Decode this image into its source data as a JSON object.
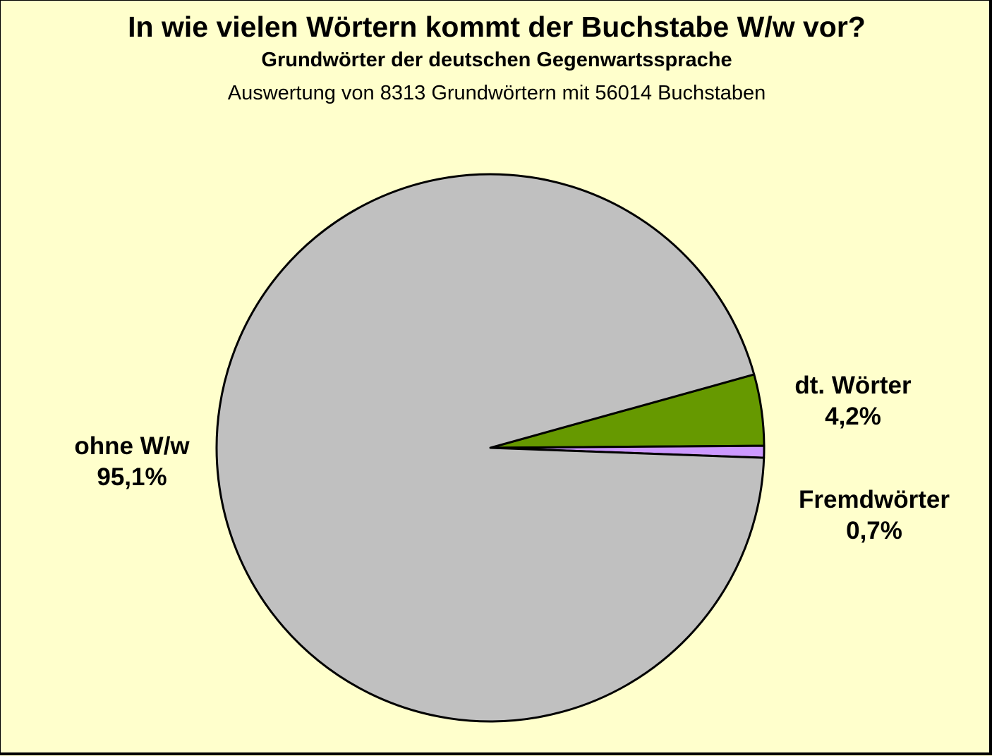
{
  "chart_data": {
    "type": "pie",
    "title": "In wie vielen Wörtern kommt der Buchstabe W/w vor?",
    "subtitle": "Grundwörter der deutschen Gegenwartssprache",
    "caption": "Auswertung von 8313 Grundwörtern mit 56014 Buchstaben",
    "slices": [
      {
        "label": "dt. Wörter",
        "value": 4.2,
        "value_label": "4,2%",
        "color": "#669900"
      },
      {
        "label": "Fremdwörter",
        "value": 0.7,
        "value_label": "0,7%",
        "color": "#cc99ff"
      },
      {
        "label": "ohne W/w",
        "value": 95.1,
        "value_label": "95,1%",
        "color": "#c0c0c0"
      }
    ],
    "background_color": "#ffffcc",
    "legend": "none"
  }
}
